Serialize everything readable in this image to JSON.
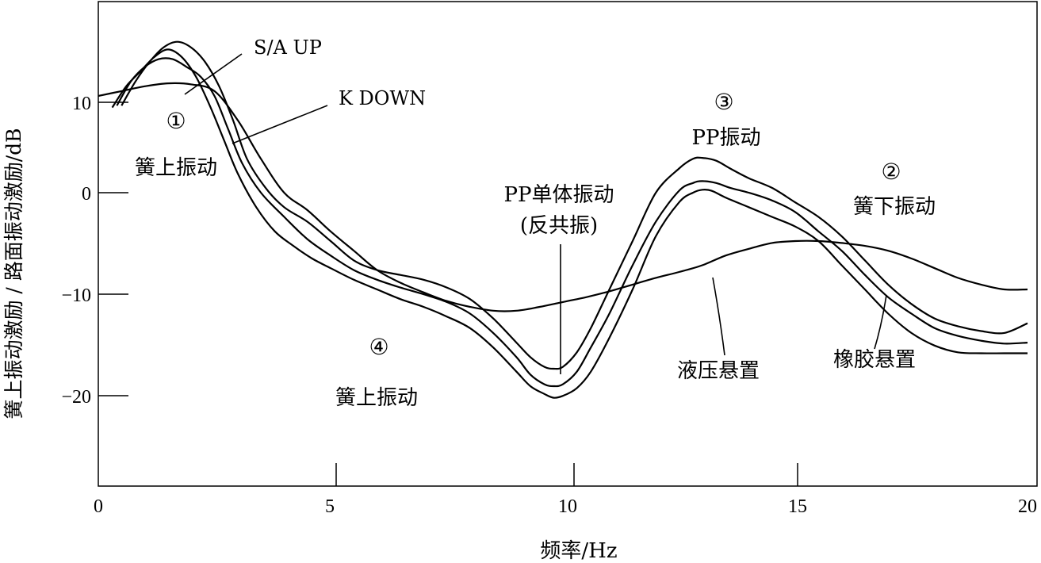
{
  "chart_data": {
    "type": "line",
    "title": "",
    "xlabel": "频率/Hz",
    "ylabel": "簧上振动激励 / 路面振动激励/dB",
    "xlim": [
      0,
      20
    ],
    "ylim": [
      -29,
      20
    ],
    "xticks": [
      "0",
      "5",
      "10",
      "15",
      "20"
    ],
    "yticks": [
      {
        "value": 10,
        "label": "10"
      },
      {
        "value": 0,
        "label": "0"
      },
      {
        "value": -10,
        "label": "−10"
      },
      {
        "value": -20,
        "label": "−20"
      }
    ],
    "grid": false,
    "series": [
      {
        "x": [
          0.5,
          0.8,
          1.1,
          1.4,
          1.7,
          2.0,
          2.3,
          2.6,
          2.9,
          3.2,
          3.6,
          4.0,
          4.5,
          5.0,
          5.5,
          6.0,
          6.5,
          7.0,
          7.5,
          8.0,
          8.5,
          9.0,
          9.3,
          9.6,
          9.8,
          10.0,
          10.3,
          10.6,
          11.0,
          11.5,
          12.0,
          12.5,
          12.8,
          13.0,
          13.3,
          13.6,
          14.0,
          14.5,
          15.0,
          15.5,
          16.0,
          16.5,
          17.0,
          17.5,
          18.0,
          18.5,
          19.0,
          19.5,
          20.0
        ],
        "y": [
          9.0,
          11.5,
          13.5,
          15.0,
          15.6,
          15.0,
          13.5,
          11.0,
          7.5,
          3.5,
          0.5,
          -1.5,
          -3.0,
          -5.0,
          -7.0,
          -8.0,
          -8.5,
          -9.0,
          -9.8,
          -11.0,
          -13.0,
          -15.5,
          -17.0,
          -18.0,
          -18.2,
          -18.0,
          -16.5,
          -14.0,
          -10.0,
          -5.0,
          0.0,
          2.5,
          3.5,
          3.6,
          3.3,
          2.5,
          1.5,
          0.5,
          -1.0,
          -2.5,
          -4.5,
          -7.0,
          -9.5,
          -11.5,
          -13.0,
          -13.8,
          -14.3,
          -14.5,
          -13.5
        ]
      },
      {
        "x": [
          0.4,
          0.7,
          1.0,
          1.3,
          1.6,
          1.9,
          2.2,
          2.5,
          2.8,
          3.1,
          3.5,
          4.0,
          4.5,
          5.0,
          5.5,
          6.0,
          6.5,
          7.0,
          7.5,
          8.0,
          8.5,
          9.0,
          9.3,
          9.6,
          9.8,
          10.0,
          10.3,
          10.6,
          11.0,
          11.5,
          12.0,
          12.5,
          12.8,
          13.0,
          13.3,
          13.6,
          14.0,
          14.5,
          15.0,
          15.5,
          16.0,
          16.5,
          17.0,
          17.5,
          18.0,
          18.5,
          19.0,
          19.5,
          20.0
        ],
        "y": [
          9.0,
          11.5,
          13.0,
          13.8,
          13.8,
          13.0,
          12.0,
          10.0,
          6.5,
          3.0,
          0.0,
          -2.5,
          -4.8,
          -6.5,
          -8.0,
          -9.0,
          -9.8,
          -10.5,
          -11.3,
          -12.5,
          -14.5,
          -17.0,
          -18.8,
          -19.8,
          -20.0,
          -19.8,
          -18.5,
          -16.0,
          -12.5,
          -7.5,
          -3.0,
          0.2,
          1.0,
          1.2,
          1.0,
          0.5,
          0.0,
          -0.8,
          -2.0,
          -4.0,
          -6.0,
          -8.5,
          -10.8,
          -12.5,
          -14.0,
          -14.8,
          -15.3,
          -15.6,
          -15.5
        ]
      },
      {
        "x": [
          0.3,
          0.6,
          0.9,
          1.2,
          1.5,
          1.8,
          2.1,
          2.4,
          2.7,
          3.0,
          3.4,
          3.8,
          4.2,
          4.6,
          5.0,
          5.5,
          6.0,
          6.5,
          7.0,
          7.5,
          8.0,
          8.5,
          9.0,
          9.3,
          9.6,
          9.8,
          10.0,
          10.3,
          10.6,
          11.0,
          11.5,
          12.0,
          12.5,
          12.8,
          13.0,
          13.2,
          13.5,
          14.0,
          14.5,
          15.0,
          15.5,
          16.0,
          16.5,
          17.0,
          17.5,
          18.0,
          18.5,
          19.0,
          19.5,
          20.0
        ],
        "y": [
          8.8,
          11.0,
          12.5,
          14.0,
          14.8,
          14.0,
          12.0,
          9.0,
          5.5,
          2.0,
          -1.5,
          -4.0,
          -5.5,
          -6.8,
          -7.8,
          -9.0,
          -10.0,
          -11.0,
          -11.8,
          -12.8,
          -14.0,
          -16.0,
          -18.5,
          -20.0,
          -20.8,
          -21.2,
          -21.0,
          -20.2,
          -18.5,
          -15.0,
          -10.0,
          -4.5,
          -1.0,
          0.0,
          0.3,
          0.2,
          -0.5,
          -1.5,
          -2.5,
          -3.5,
          -5.0,
          -7.5,
          -10.0,
          -12.5,
          -14.5,
          -15.8,
          -16.5,
          -16.6,
          -16.6,
          -16.6
        ]
      },
      {
        "x": [
          0.0,
          0.5,
          1.0,
          1.5,
          2.0,
          2.5,
          3.0,
          3.5,
          4.0,
          4.5,
          5.0,
          5.5,
          6.0,
          6.5,
          7.0,
          7.5,
          8.0,
          8.5,
          9.0,
          9.5,
          10.0,
          10.5,
          11.0,
          11.5,
          12.0,
          12.5,
          13.0,
          13.5,
          14.0,
          14.5,
          15.0,
          15.5,
          16.0,
          16.5,
          17.0,
          17.5,
          18.0,
          18.5,
          19.0,
          19.5,
          20.0
        ],
        "y": [
          10.0,
          10.5,
          11.0,
          11.3,
          11.2,
          10.5,
          7.5,
          3.5,
          0.0,
          -1.8,
          -4.0,
          -6.0,
          -8.0,
          -9.3,
          -10.3,
          -11.2,
          -11.8,
          -12.2,
          -12.2,
          -11.8,
          -11.3,
          -10.8,
          -10.2,
          -9.5,
          -8.8,
          -8.2,
          -7.5,
          -6.5,
          -5.8,
          -5.2,
          -5.0,
          -5.0,
          -5.2,
          -5.5,
          -6.0,
          -6.8,
          -7.8,
          -8.8,
          -9.5,
          -10.0,
          -10.0
        ]
      }
    ]
  },
  "annotations": {
    "sa_up": "S/A UP",
    "k_down": "K DOWN",
    "circle1": "①",
    "sprung1": "簧上振动",
    "circle3": "③",
    "pp_vib": "PP振动",
    "circle2": "②",
    "unsprung": "簧下振动",
    "pp_single_1": "PP单体振动",
    "pp_single_2": "(反共振)",
    "circle4": "④",
    "sprung4": "簧上振动",
    "hydraulic": "液压悬置",
    "rubber": "橡胶悬置"
  }
}
